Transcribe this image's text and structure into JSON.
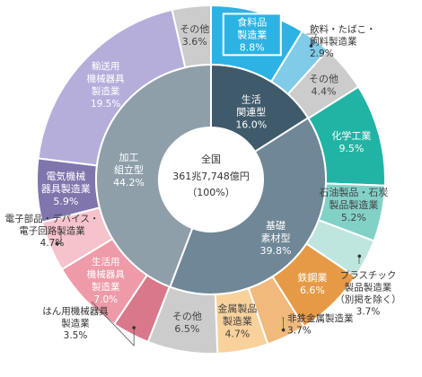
{
  "chart_data": {
    "type": "pie",
    "variant": "double-donut",
    "center": {
      "title": "全国",
      "value": "361兆7,748億円",
      "share": "（100%）"
    },
    "inner_ring": [
      {
        "label": "生活\n関連型",
        "value": 16.0,
        "value_label": "16.0%",
        "color": "#3f5a6a"
      },
      {
        "label": "基礎\n素材型",
        "value": 39.8,
        "value_label": "39.8%",
        "color": "#6f8796"
      },
      {
        "label": "加工\n組立型",
        "value": 44.2,
        "value_label": "44.2%",
        "color": "#8f9fa9"
      }
    ],
    "outer_ring": [
      {
        "label": "食料品\n製造業",
        "value": 8.8,
        "value_label": "8.8%",
        "color": "#2cb3e3",
        "highlight": true
      },
      {
        "label": "飲料・たばこ・\n飼料製造業",
        "value": 2.9,
        "value_label": "2.9%",
        "color": "#7fcbe8"
      },
      {
        "label": "その他",
        "value": 4.4,
        "value_label": "4.4%",
        "color": "#cccccc"
      },
      {
        "label": "化学工業",
        "value": 9.5,
        "value_label": "9.5%",
        "color": "#21b4a4"
      },
      {
        "label": "石油製品・石炭\n製品製造業",
        "value": 5.2,
        "value_label": "5.2%",
        "color": "#82d1c7"
      },
      {
        "label": "プラスチック\n製品製造業\n（別掲を除く）",
        "value": 3.7,
        "value_label": "3.7%",
        "color": "#bfe5df"
      },
      {
        "label": "鉄鋼業",
        "value": 6.6,
        "value_label": "6.6%",
        "color": "#e79a46"
      },
      {
        "label": "非鉄金属製造業",
        "value": 3.7,
        "value_label": "3.7%",
        "color": "#f1b97b"
      },
      {
        "label": "金属製品\n製造業",
        "value": 4.7,
        "value_label": "4.7%",
        "color": "#f8d19b"
      },
      {
        "label": "その他",
        "value": 6.5,
        "value_label": "6.5%",
        "color": "#cccccc"
      },
      {
        "label": "はん用機械器具\n製造業",
        "value": 3.5,
        "value_label": "3.5%",
        "color": "#d9788a"
      },
      {
        "label": "生活用\n機械器具\n製造業",
        "value": 7.0,
        "value_label": "7.0%",
        "color": "#ee9aa8"
      },
      {
        "label": "電子部品・デバイス・\n電子回路製造業",
        "value": 4.7,
        "value_label": "4.7%",
        "color": "#f6c3cc"
      },
      {
        "label": "電気機械\n器具製造業",
        "value": 5.9,
        "value_label": "5.9%",
        "color": "#8075ad"
      },
      {
        "label": "輸送用\n機械器具\n製造業",
        "value": 19.5,
        "value_label": "19.5%",
        "color": "#b5aedb"
      },
      {
        "label": "その他",
        "value": 3.6,
        "value_label": "3.6%",
        "color": "#cccccc"
      }
    ]
  }
}
